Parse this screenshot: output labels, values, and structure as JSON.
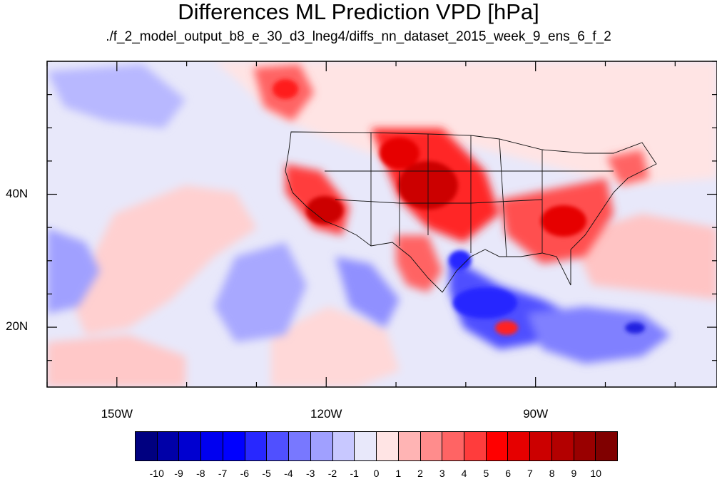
{
  "title": "Differences ML Prediction VPD [hPa]",
  "subtitle": "./f_2_model_output_b8_e_30_d3_lneg4/diffs_nn_dataset_2015_week_9_ens_6_f_2",
  "map": {
    "projection": "cylindrical-equidistant",
    "lon_range": [
      -160,
      -64
    ],
    "lat_range": [
      11,
      60
    ],
    "lon_ticks": [
      {
        "value": -150,
        "label": "150W"
      },
      {
        "value": -120,
        "label": "120W"
      },
      {
        "value": -90,
        "label": "90W"
      }
    ],
    "lat_ticks": [
      {
        "value": 40,
        "label": "40N"
      },
      {
        "value": 20,
        "label": "20N"
      }
    ],
    "background_color": "#e8e8fa"
  },
  "colorbar": {
    "colors": [
      "#000080",
      "#0000a8",
      "#0000d0",
      "#0000f0",
      "#0000ff",
      "#2828ff",
      "#5050ff",
      "#7878ff",
      "#a0a0ff",
      "#c8c8ff",
      "#e8e8fa",
      "#ffe4e4",
      "#ffb4b4",
      "#ff8c8c",
      "#ff6464",
      "#ff3c3c",
      "#ff0000",
      "#e60000",
      "#cc0000",
      "#b30000",
      "#990000",
      "#800000"
    ],
    "labels": [
      "-10",
      "-9",
      "-8",
      "-7",
      "-6",
      "-5",
      "-4",
      "-3",
      "-2",
      "-1",
      "0",
      "1",
      "2",
      "3",
      "4",
      "5",
      "6",
      "7",
      "8",
      "9",
      "10"
    ]
  }
}
